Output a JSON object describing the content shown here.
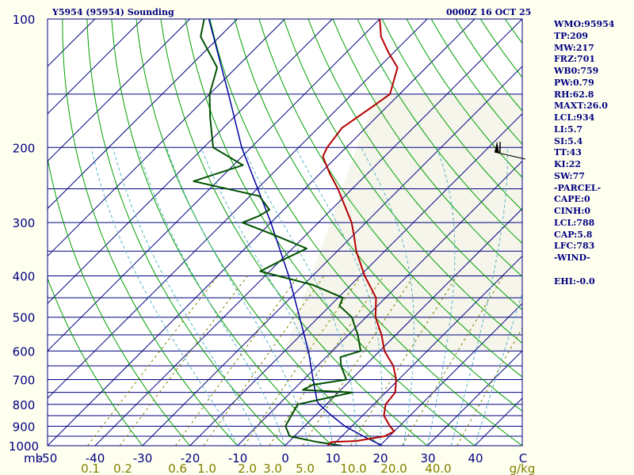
{
  "header": {
    "station_title": "Y5954 (95954) Sounding",
    "datetime": "0000Z 16 OCT 25"
  },
  "stats": [
    "WMO:95954",
    "TP:209",
    "MW:217",
    "FRZ:701",
    "WB0:759",
    "PW:0.79",
    "RH:62.8",
    "MAXT:26.0",
    "LCL:934",
    "LI:5.7",
    "SI:5.4",
    "TT:43",
    "KI:22",
    "SW:77",
    "-PARCEL-",
    "CAPE:0",
    "CINH:0",
    "LCL:788",
    "CAP:5.8",
    "LFC:783",
    "-WIND-",
    "",
    "EHI:-0.0"
  ],
  "colors": {
    "background": "#fffff0",
    "text": "#00007f",
    "isobar": "#00007f",
    "isotherm": "#00007f",
    "dry_adiabat": "#00a000",
    "moist_adiabat": "#5ab4c8",
    "mixing_ratio": "#808000",
    "temperature": "#b40000",
    "dewpoint": "#005000",
    "parcel": "#0000a0",
    "shade": "#ececd8",
    "wind_barb": "#000000"
  },
  "chart_data": {
    "type": "skew-t",
    "title": "Y5954 (95954) Sounding",
    "valid": "0000Z 16 OCT 25",
    "pressure_unit": "mb",
    "mixing_ratio_unit": "g/kg",
    "pressure_range": [
      1000,
      100
    ],
    "temperature_range_at_1000mb": [
      -50,
      50
    ],
    "pressure_ticks": [
      100,
      200,
      300,
      400,
      500,
      600,
      700,
      800,
      900,
      1000
    ],
    "pressure_lines": [
      1000,
      950,
      900,
      850,
      800,
      750,
      700,
      650,
      600,
      550,
      500,
      450,
      400,
      350,
      300,
      250,
      200,
      150,
      100
    ],
    "temperature_ticks": [
      "-50",
      "-40",
      "-30",
      "-20",
      "-10",
      "0",
      "10",
      "20",
      "30",
      "40",
      "C"
    ],
    "mixing_ratio_ticks": [
      "0.1",
      "0.2",
      "0.6",
      "1.0",
      "2.0",
      "3.0",
      "5.0",
      "10.0",
      "20.0",
      "40.0",
      "g/kg"
    ],
    "tropopause_mb": 209,
    "temperature_profile": [
      {
        "p": 1000,
        "t": 9
      },
      {
        "p": 980,
        "t": 9
      },
      {
        "p": 975,
        "t": 14
      },
      {
        "p": 950,
        "t": 19
      },
      {
        "p": 925,
        "t": 20
      },
      {
        "p": 900,
        "t": 18
      },
      {
        "p": 850,
        "t": 14.5
      },
      {
        "p": 800,
        "t": 12.5
      },
      {
        "p": 750,
        "t": 12
      },
      {
        "p": 700,
        "t": 9.5
      },
      {
        "p": 650,
        "t": 6
      },
      {
        "p": 600,
        "t": 1
      },
      {
        "p": 550,
        "t": -3
      },
      {
        "p": 500,
        "t": -8
      },
      {
        "p": 450,
        "t": -12
      },
      {
        "p": 400,
        "t": -19
      },
      {
        "p": 350,
        "t": -26
      },
      {
        "p": 320,
        "t": -30
      },
      {
        "p": 300,
        "t": -33
      },
      {
        "p": 250,
        "t": -43
      },
      {
        "p": 230,
        "t": -48
      },
      {
        "p": 210,
        "t": -53
      },
      {
        "p": 200,
        "t": -54
      },
      {
        "p": 180,
        "t": -55
      },
      {
        "p": 160,
        "t": -53
      },
      {
        "p": 150,
        "t": -52
      },
      {
        "p": 130,
        "t": -56
      },
      {
        "p": 120,
        "t": -61
      },
      {
        "p": 110,
        "t": -66
      },
      {
        "p": 100,
        "t": -70
      }
    ],
    "dewpoint_profile": [
      {
        "p": 1000,
        "t": 12
      },
      {
        "p": 980,
        "t": 6
      },
      {
        "p": 950,
        "t": -1
      },
      {
        "p": 900,
        "t": -4
      },
      {
        "p": 850,
        "t": -5
      },
      {
        "p": 800,
        "t": -6
      },
      {
        "p": 750,
        "t": 3
      },
      {
        "p": 740,
        "t": -8
      },
      {
        "p": 720,
        "t": -7
      },
      {
        "p": 700,
        "t": -1
      },
      {
        "p": 650,
        "t": -5
      },
      {
        "p": 620,
        "t": -7
      },
      {
        "p": 600,
        "t": -4
      },
      {
        "p": 550,
        "t": -8
      },
      {
        "p": 500,
        "t": -13
      },
      {
        "p": 470,
        "t": -18
      },
      {
        "p": 450,
        "t": -19
      },
      {
        "p": 420,
        "t": -28
      },
      {
        "p": 390,
        "t": -42
      },
      {
        "p": 370,
        "t": -40
      },
      {
        "p": 345,
        "t": -37
      },
      {
        "p": 320,
        "t": -47
      },
      {
        "p": 300,
        "t": -56
      },
      {
        "p": 290,
        "t": -54
      },
      {
        "p": 280,
        "t": -53
      },
      {
        "p": 260,
        "t": -58
      },
      {
        "p": 240,
        "t": -75
      },
      {
        "p": 220,
        "t": -68
      },
      {
        "p": 200,
        "t": -78
      },
      {
        "p": 170,
        "t": -85
      },
      {
        "p": 150,
        "t": -90
      },
      {
        "p": 130,
        "t": -94
      },
      {
        "p": 110,
        "t": -104
      },
      {
        "p": 100,
        "t": -107
      }
    ],
    "parcel_profile": [
      {
        "p": 1000,
        "t": 20.5
      },
      {
        "p": 950,
        "t": 14.5
      },
      {
        "p": 900,
        "t": 8.5
      },
      {
        "p": 850,
        "t": 3.5
      },
      {
        "p": 800,
        "t": -1.5
      },
      {
        "p": 788,
        "t": -2.5
      },
      {
        "p": 700,
        "t": -8
      },
      {
        "p": 600,
        "t": -15
      },
      {
        "p": 500,
        "t": -24
      },
      {
        "p": 400,
        "t": -35
      },
      {
        "p": 300,
        "t": -50
      },
      {
        "p": 200,
        "t": -72
      },
      {
        "p": 150,
        "t": -86
      },
      {
        "p": 100,
        "t": -106
      }
    ],
    "wind": {
      "p": 205,
      "direction_deg": 283,
      "speed_kt": 60
    }
  }
}
